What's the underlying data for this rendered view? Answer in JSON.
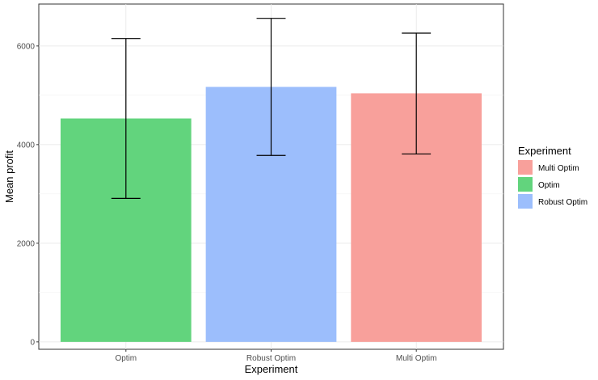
{
  "chart_data": {
    "type": "bar",
    "xlabel": "Experiment",
    "ylabel": "Mean profit",
    "categories": [
      "Optim",
      "Robust Optim",
      "Multi Optim"
    ],
    "values": [
      4530,
      5170,
      5040
    ],
    "error_bars": [
      {
        "low": 2910,
        "high": 6150
      },
      {
        "low": 3780,
        "high": 6560
      },
      {
        "low": 3810,
        "high": 6260
      }
    ],
    "ylim": [
      -150,
      6850
    ],
    "yticks": [
      0,
      2000,
      4000,
      6000
    ],
    "ytick_labels": [
      "0",
      "2000",
      "4000",
      "6000"
    ],
    "grid": true,
    "legend": {
      "title": "Experiment",
      "position": "right",
      "entries": [
        {
          "label": "Multi Optim",
          "color": "#F8A09B"
        },
        {
          "label": "Optim",
          "color": "#62D47D"
        },
        {
          "label": "Robust Optim",
          "color": "#9CBEFC"
        }
      ]
    },
    "bar_colors": [
      "#62D47D",
      "#9CBEFC",
      "#F8A09B"
    ]
  }
}
